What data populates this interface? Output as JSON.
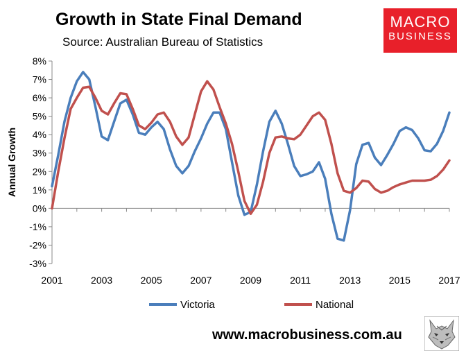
{
  "header": {
    "title": "Growth in State Final Demand",
    "subtitle": "Source: Australian Bureau of Statistics"
  },
  "logo": {
    "line1": "MACRO",
    "line2": "BUSINESS",
    "color": "#e8202a"
  },
  "footer": {
    "website": "www.macrobusiness.com.au"
  },
  "chart_data": {
    "type": "line",
    "title": "Growth in State Final Demand",
    "xlabel": "",
    "ylabel": "Annual Growth",
    "xlim": [
      2001,
      2017
    ],
    "ylim": [
      -3,
      8
    ],
    "x_ticks": [
      2001,
      2003,
      2005,
      2007,
      2009,
      2011,
      2013,
      2015,
      2017
    ],
    "x_tick_labels": [
      "2001",
      "2003",
      "2005",
      "2007",
      "2009",
      "2011",
      "2013",
      "2015",
      "2017"
    ],
    "y_ticks": [
      -3,
      -2,
      -1,
      0,
      1,
      2,
      3,
      4,
      5,
      6,
      7,
      8
    ],
    "y_tick_labels": [
      "-3%",
      "-2%",
      "-1%",
      "0%",
      "1%",
      "2%",
      "3%",
      "4%",
      "5%",
      "6%",
      "7%",
      "8%"
    ],
    "legend_position": "bottom",
    "series": [
      {
        "name": "Victoria",
        "color": "#4a7ebb",
        "x": [
          2001,
          2001.25,
          2001.5,
          2001.75,
          2002,
          2002.25,
          2002.5,
          2002.75,
          2003,
          2003.25,
          2003.5,
          2003.75,
          2004,
          2004.25,
          2004.5,
          2004.75,
          2005,
          2005.25,
          2005.5,
          2005.75,
          2006,
          2006.25,
          2006.5,
          2006.75,
          2007,
          2007.25,
          2007.5,
          2007.75,
          2008,
          2008.25,
          2008.5,
          2008.75,
          2009,
          2009.25,
          2009.5,
          2009.75,
          2010,
          2010.25,
          2010.5,
          2010.75,
          2011,
          2011.25,
          2011.5,
          2011.75,
          2012,
          2012.25,
          2012.5,
          2012.75,
          2013,
          2013.25,
          2013.5,
          2013.75,
          2014,
          2014.25,
          2014.5,
          2014.75,
          2015,
          2015.25,
          2015.5,
          2015.75,
          2016,
          2016.25,
          2016.5,
          2016.75,
          2017
        ],
        "values": [
          1.2,
          2.9,
          4.7,
          6.0,
          6.9,
          7.4,
          7.0,
          5.5,
          3.9,
          3.7,
          4.7,
          5.7,
          5.9,
          5.1,
          4.1,
          4.0,
          4.4,
          4.7,
          4.3,
          3.2,
          2.3,
          1.9,
          2.3,
          3.1,
          3.8,
          4.6,
          5.2,
          5.2,
          4.3,
          2.5,
          0.7,
          -0.35,
          -0.2,
          1.3,
          3.1,
          4.7,
          5.3,
          4.6,
          3.5,
          2.3,
          1.75,
          1.85,
          2.0,
          2.5,
          1.6,
          -0.3,
          -1.65,
          -1.75,
          -0.1,
          2.4,
          3.45,
          3.55,
          2.75,
          2.35,
          2.9,
          3.5,
          4.2,
          4.4,
          4.25,
          3.8,
          3.15,
          3.1,
          3.5,
          4.2,
          5.2
        ]
      },
      {
        "name": "National",
        "color": "#c0504d",
        "x": [
          2001,
          2001.25,
          2001.5,
          2001.75,
          2002,
          2002.25,
          2002.5,
          2002.75,
          2003,
          2003.25,
          2003.5,
          2003.75,
          2004,
          2004.25,
          2004.5,
          2004.75,
          2005,
          2005.25,
          2005.5,
          2005.75,
          2006,
          2006.25,
          2006.5,
          2006.75,
          2007,
          2007.25,
          2007.5,
          2007.75,
          2008,
          2008.25,
          2008.5,
          2008.75,
          2009,
          2009.25,
          2009.5,
          2009.75,
          2010,
          2010.25,
          2010.5,
          2010.75,
          2011,
          2011.25,
          2011.5,
          2011.75,
          2012,
          2012.25,
          2012.5,
          2012.75,
          2013,
          2013.25,
          2013.5,
          2013.75,
          2014,
          2014.25,
          2014.5,
          2014.75,
          2015,
          2015.25,
          2015.5,
          2015.75,
          2016,
          2016.25,
          2016.5,
          2016.75,
          2017
        ],
        "values": [
          0.0,
          2.0,
          3.8,
          5.4,
          6.0,
          6.55,
          6.6,
          6.0,
          5.3,
          5.1,
          5.7,
          6.25,
          6.2,
          5.4,
          4.5,
          4.3,
          4.65,
          5.1,
          5.2,
          4.7,
          3.9,
          3.45,
          3.85,
          5.1,
          6.35,
          6.9,
          6.45,
          5.5,
          4.6,
          3.5,
          2.0,
          0.4,
          -0.3,
          0.2,
          1.45,
          3.0,
          3.85,
          3.9,
          3.8,
          3.75,
          4.0,
          4.5,
          5.0,
          5.2,
          4.8,
          3.5,
          1.9,
          0.95,
          0.85,
          1.1,
          1.5,
          1.45,
          1.05,
          0.85,
          0.95,
          1.15,
          1.3,
          1.4,
          1.5,
          1.5,
          1.5,
          1.55,
          1.75,
          2.1,
          2.6
        ]
      }
    ]
  }
}
